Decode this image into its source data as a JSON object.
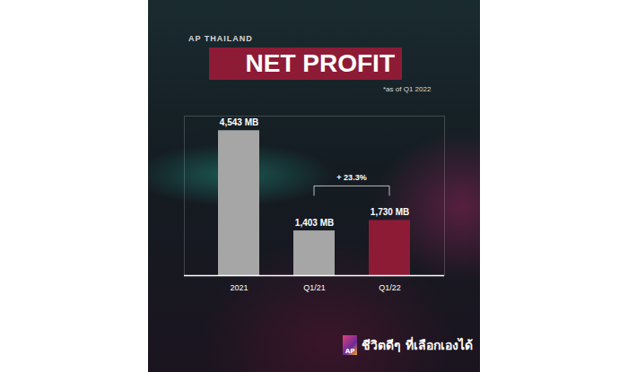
{
  "chart_data": {
    "type": "bar",
    "title": "NET PROFIT",
    "subtitle": "AP THAILAND",
    "categories": [
      "2021",
      "Q1/21",
      "Q1/22"
    ],
    "values": [
      4543,
      1403,
      1730
    ],
    "value_labels": [
      "4,543 MB",
      "1,403 MB",
      "1,730 MB"
    ],
    "colors": [
      "#a6a6a6",
      "#a6a6a6",
      "#8e1b36"
    ],
    "ylim": [
      0,
      5000
    ],
    "tick_labels": "x",
    "data_labels": true,
    "annotations": [
      {
        "text": "*as of Q1 2022"
      },
      {
        "text": "+ 23.3%",
        "from": "Q1/21",
        "to": "Q1/22"
      },
      {
        "text": "AP"
      },
      {
        "text": "ชีวิตดีๆ ที่เลือกเองได้"
      }
    ]
  }
}
